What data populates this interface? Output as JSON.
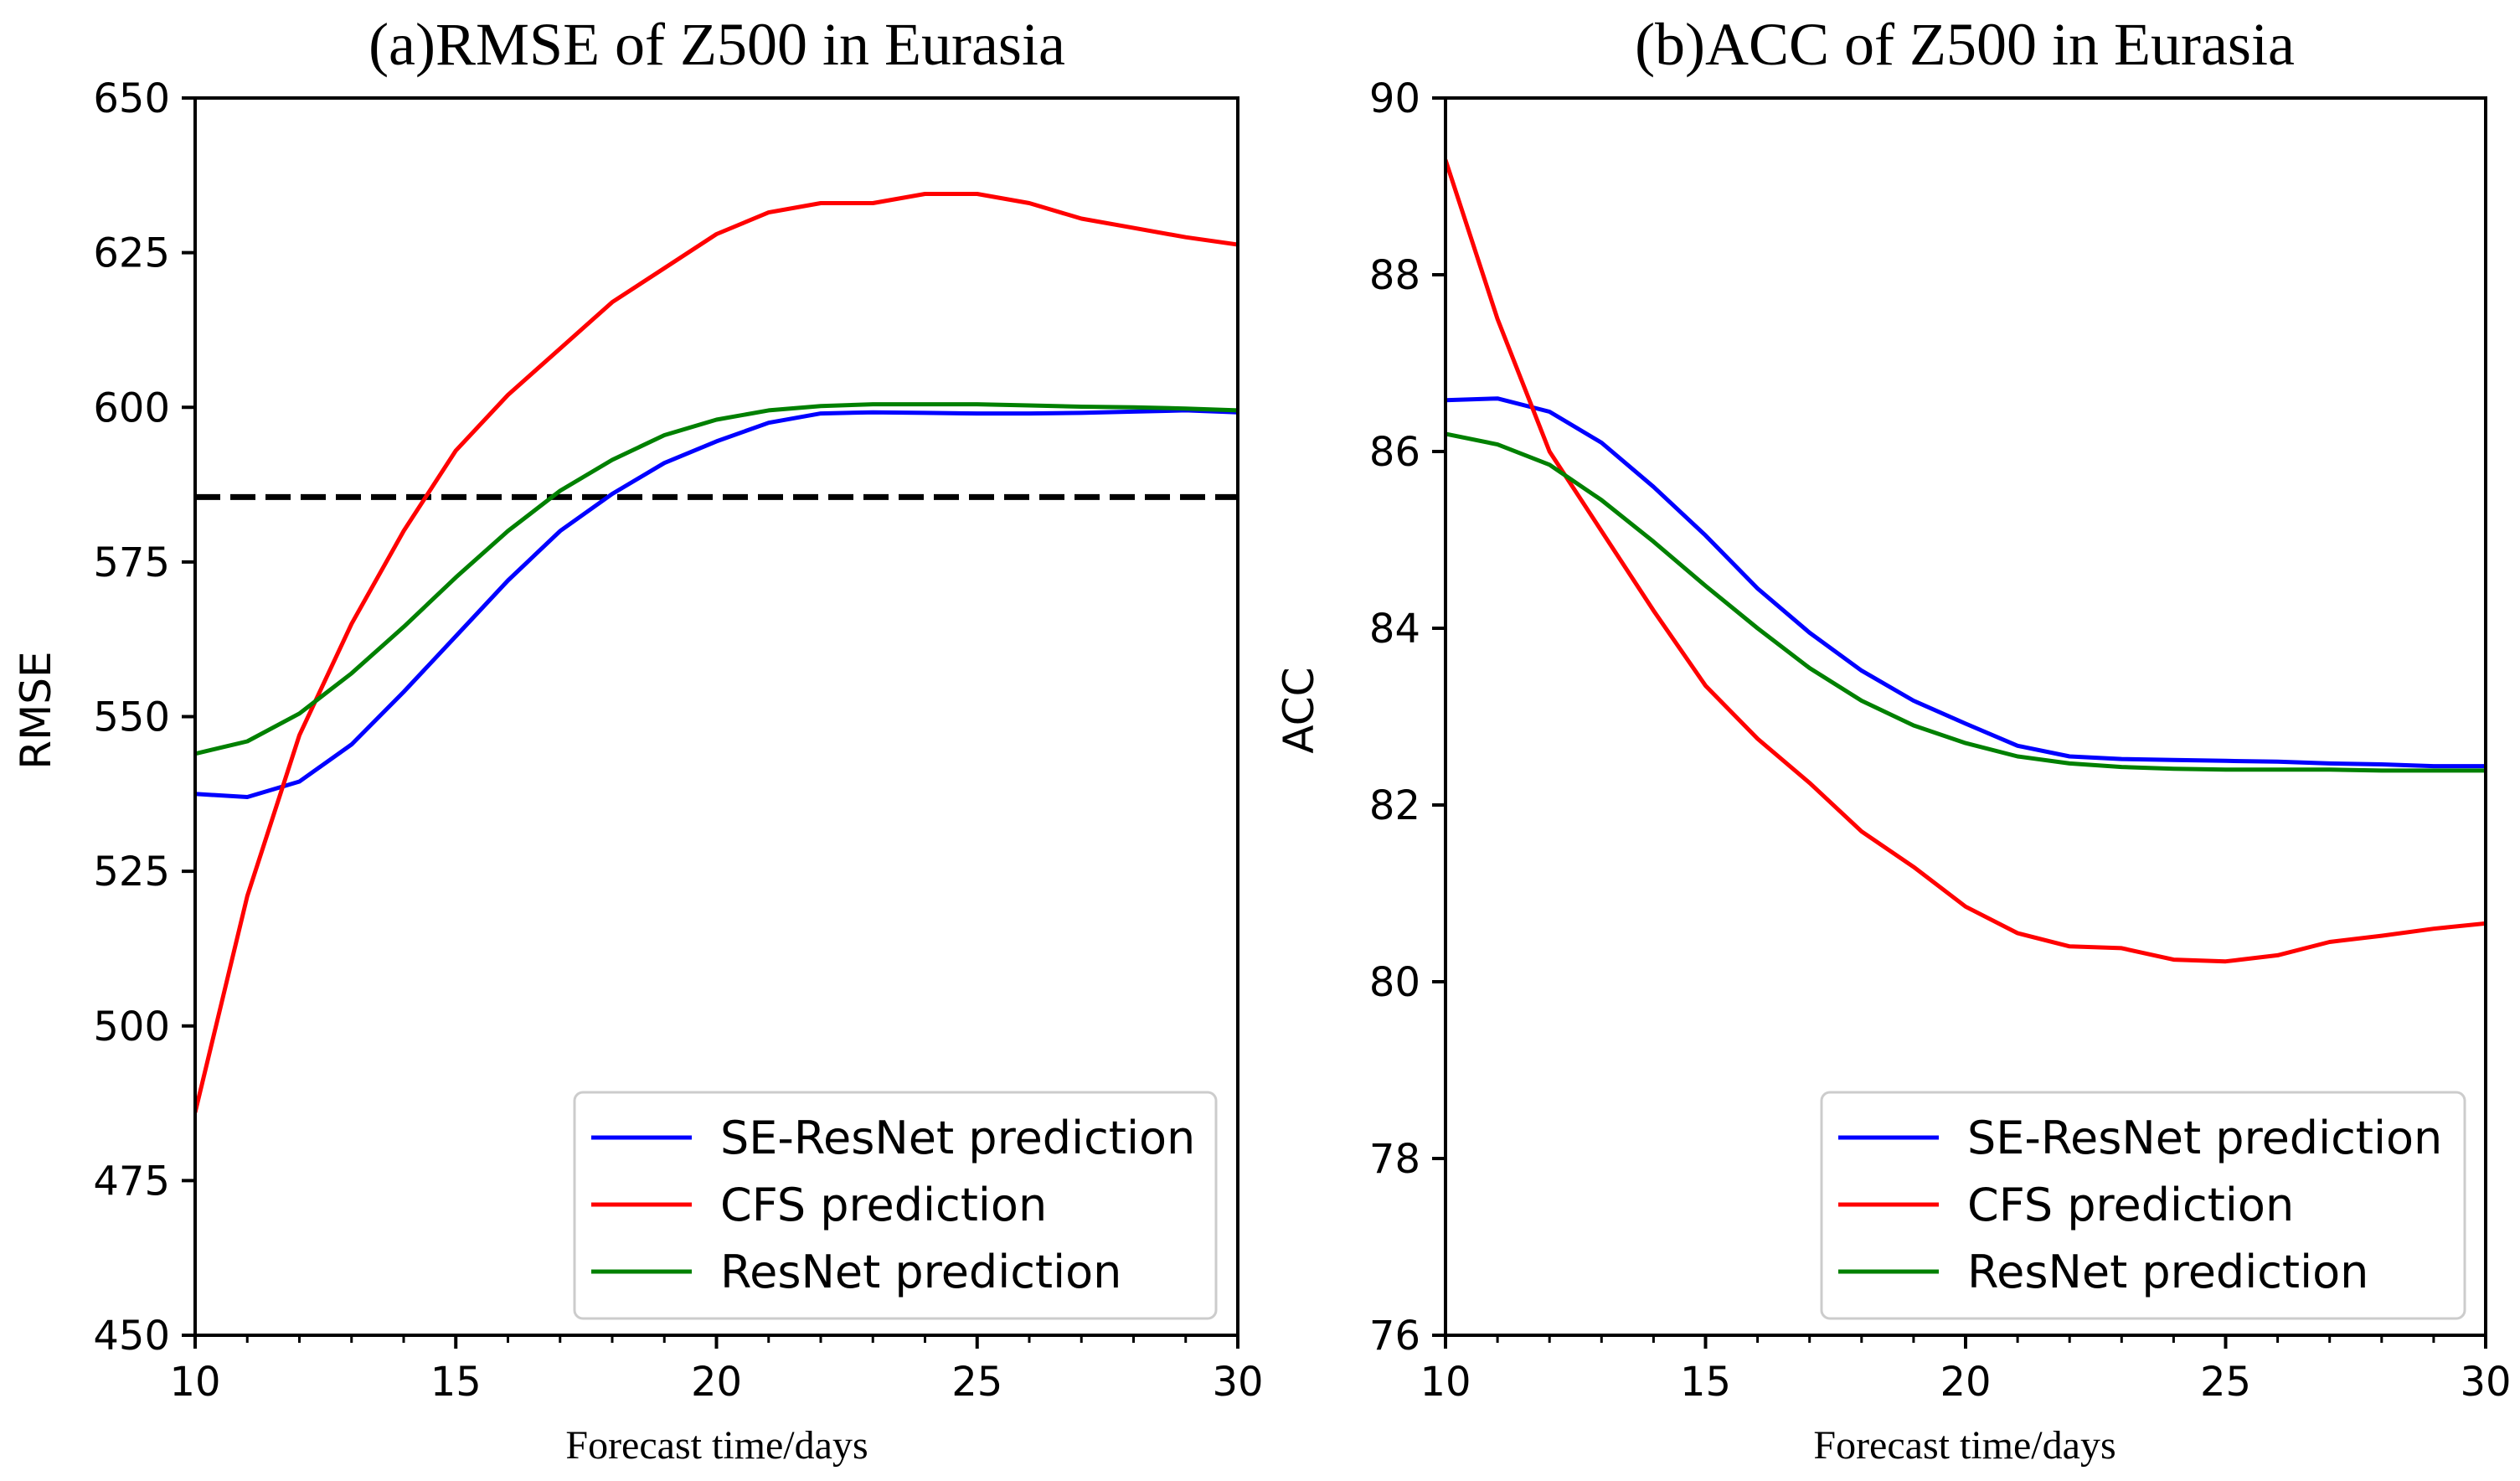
{
  "chart_data": [
    {
      "type": "line",
      "title": "(a)RMSE of Z500 in Eurasia",
      "xlabel": "Forecast time/days",
      "ylabel": "RMSE",
      "xlim": [
        10,
        30
      ],
      "ylim": [
        450,
        650
      ],
      "xticks": [
        10,
        15,
        20,
        25,
        30
      ],
      "yticks": [
        450,
        475,
        500,
        525,
        550,
        575,
        600,
        625,
        650
      ],
      "legend_position": "lower-right",
      "x": [
        10,
        11,
        12,
        13,
        14,
        15,
        16,
        17,
        18,
        19,
        20,
        21,
        22,
        23,
        24,
        25,
        26,
        27,
        28,
        29,
        30
      ],
      "series": [
        {
          "name": "SE-ResNet prediction",
          "color": "#0000ff",
          "values": [
            537.5,
            537.0,
            539.5,
            545.5,
            554.0,
            563.0,
            572.0,
            580.0,
            586.0,
            591.0,
            594.5,
            597.5,
            599.0,
            599.2,
            599.1,
            599.0,
            599.0,
            599.1,
            599.3,
            599.5,
            599.2
          ]
        },
        {
          "name": "CFS prediction",
          "color": "#ff0000",
          "values": [
            486.0,
            521.0,
            547.0,
            565.0,
            580.0,
            593.0,
            602.0,
            609.5,
            617.0,
            622.5,
            628.0,
            631.5,
            633.0,
            633.0,
            634.5,
            634.5,
            633.0,
            630.5,
            629.0,
            627.5,
            626.3
          ]
        },
        {
          "name": "ResNet prediction",
          "color": "#008000",
          "values": [
            544.0,
            546.0,
            550.5,
            557.0,
            564.5,
            572.5,
            580.0,
            586.5,
            591.5,
            595.5,
            598.0,
            599.5,
            600.2,
            600.5,
            600.5,
            600.5,
            600.3,
            600.1,
            600.0,
            599.8,
            599.5
          ]
        }
      ],
      "reference_line": {
        "y": 585.5,
        "color": "#000000",
        "style": "dashed"
      }
    },
    {
      "type": "line",
      "title": "(b)ACC of Z500 in Eurasia",
      "xlabel": "Forecast time/days",
      "ylabel": "ACC",
      "xlim": [
        10,
        30
      ],
      "ylim": [
        76,
        90
      ],
      "xticks": [
        10,
        15,
        20,
        25,
        30
      ],
      "yticks": [
        76,
        78,
        80,
        82,
        84,
        86,
        88,
        90
      ],
      "legend_position": "lower-right",
      "x": [
        10,
        11,
        12,
        13,
        14,
        15,
        16,
        17,
        18,
        19,
        20,
        21,
        22,
        23,
        24,
        25,
        26,
        27,
        28,
        29,
        30
      ],
      "series": [
        {
          "name": "SE-ResNet prediction",
          "color": "#0000ff",
          "values": [
            86.58,
            86.6,
            86.45,
            86.1,
            85.6,
            85.05,
            84.45,
            83.95,
            83.52,
            83.18,
            82.92,
            82.67,
            82.55,
            82.52,
            82.51,
            82.5,
            82.49,
            82.47,
            82.46,
            82.44,
            82.44
          ]
        },
        {
          "name": "CFS prediction",
          "color": "#ff0000",
          "values": [
            89.3,
            87.5,
            86.0,
            85.1,
            84.2,
            83.35,
            82.75,
            82.25,
            81.7,
            81.3,
            80.85,
            80.55,
            80.4,
            80.38,
            80.25,
            80.23,
            80.3,
            80.45,
            80.52,
            80.6,
            80.66
          ]
        },
        {
          "name": "ResNet prediction",
          "color": "#008000",
          "values": [
            86.2,
            86.08,
            85.85,
            85.45,
            84.98,
            84.48,
            84.0,
            83.55,
            83.18,
            82.9,
            82.7,
            82.55,
            82.47,
            82.43,
            82.41,
            82.4,
            82.4,
            82.4,
            82.39,
            82.39,
            82.39
          ]
        }
      ]
    }
  ]
}
